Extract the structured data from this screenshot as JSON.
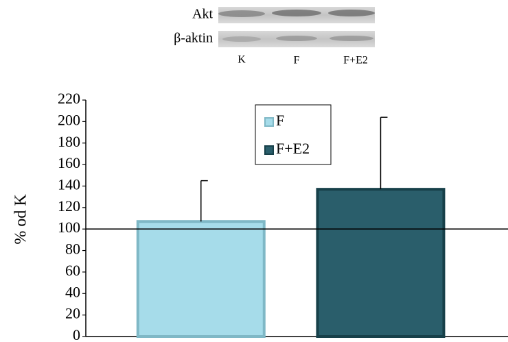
{
  "blot": {
    "rows": [
      "Akt",
      "β-aktin"
    ],
    "lanes": [
      "K",
      "F",
      "F+E2"
    ]
  },
  "chart_data": {
    "type": "bar",
    "ylabel": "% od K",
    "series": [
      {
        "name": "F",
        "color": "#a6dcea",
        "values": [
          107
        ],
        "errors": [
          38
        ]
      },
      {
        "name": "F+E2",
        "color": "#2a5e6b",
        "values": [
          137
        ],
        "errors": [
          67
        ]
      }
    ],
    "reference_line": 100,
    "ylim": [
      0,
      220
    ],
    "yticks": [
      0,
      20,
      40,
      60,
      80,
      100,
      120,
      140,
      160,
      180,
      200,
      220
    ],
    "legend": "top-center"
  }
}
